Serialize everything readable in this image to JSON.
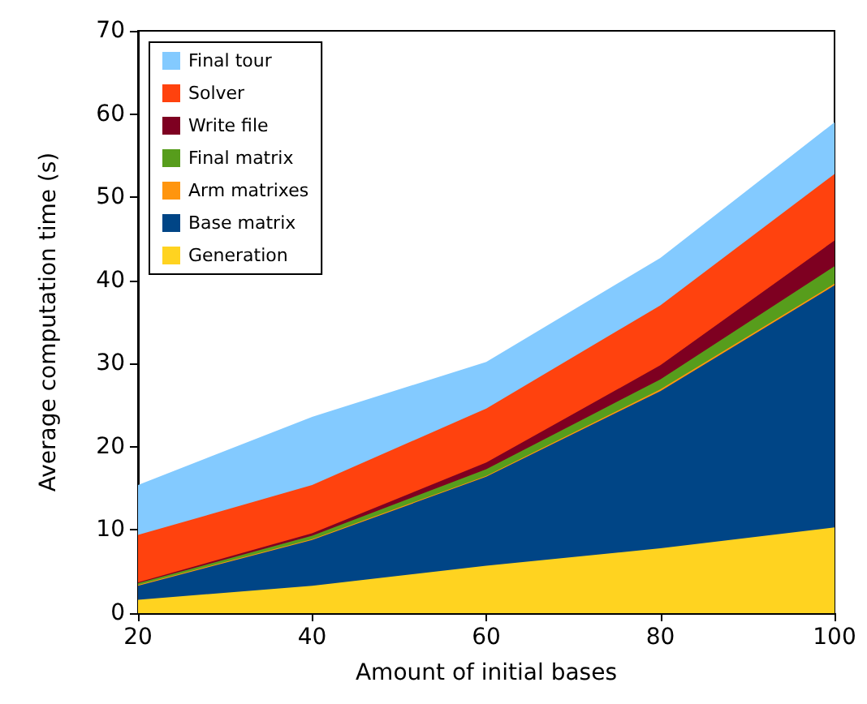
{
  "chart_data": {
    "type": "area",
    "stacked": true,
    "xlabel": "Amount of initial bases",
    "ylabel": "Average computation time (s)",
    "x": [
      20,
      40,
      60,
      80,
      100
    ],
    "series": [
      {
        "name": "Generation",
        "color": "#ffd320",
        "values": [
          1.6,
          3.3,
          5.7,
          7.8,
          10.3
        ]
      },
      {
        "name": "Base matrix",
        "color": "#004586",
        "values": [
          1.7,
          5.5,
          10.7,
          18.9,
          29.1
        ]
      },
      {
        "name": "Arm matrixes",
        "color": "#ff950e",
        "values": [
          0.1,
          0.1,
          0.1,
          0.2,
          0.2
        ]
      },
      {
        "name": "Final matrix",
        "color": "#579d1c",
        "values": [
          0.2,
          0.4,
          0.8,
          1.2,
          2.1
        ]
      },
      {
        "name": "Write file",
        "color": "#7e0021",
        "values": [
          0.1,
          0.3,
          0.8,
          1.7,
          3.1
        ]
      },
      {
        "name": "Solver",
        "color": "#ff420e",
        "values": [
          5.7,
          5.8,
          6.5,
          7.2,
          8.0
        ]
      },
      {
        "name": "Final tour",
        "color": "#83caff",
        "values": [
          6.0,
          8.2,
          5.6,
          5.7,
          6.2
        ]
      }
    ],
    "xlim": [
      20,
      100
    ],
    "xticks": [
      20,
      40,
      60,
      80,
      100
    ],
    "ylim": [
      0,
      70
    ],
    "yticks": [
      0,
      10,
      20,
      30,
      40,
      50,
      60,
      70
    ],
    "grid": false,
    "legend": "top left"
  }
}
